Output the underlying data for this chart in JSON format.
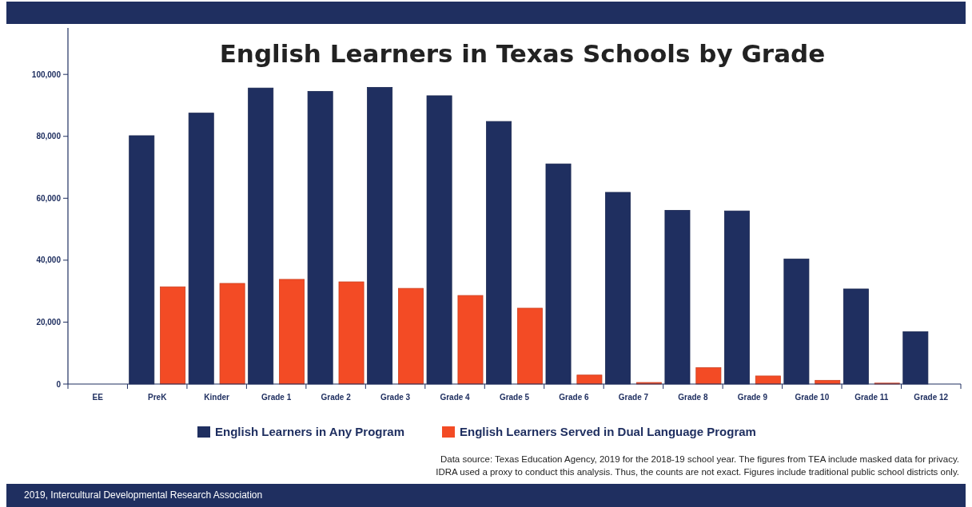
{
  "chart_data": {
    "type": "bar",
    "title": "English Learners in Texas Schools by Grade",
    "categories": [
      "EE",
      "PreK",
      "Kinder",
      "Grade 1",
      "Grade 2",
      "Grade 3",
      "Grade 4",
      "Grade 5",
      "Grade 6",
      "Grade 7",
      "Grade 8",
      "Grade 9",
      "Grade 10",
      "Grade 11",
      "Grade 12"
    ],
    "series": [
      {
        "name": "English Learners in Any Program",
        "color": "#1f2f60",
        "values": [
          null,
          80200,
          87500,
          95600,
          94500,
          95800,
          93100,
          84800,
          71100,
          61900,
          56100,
          55900,
          40400,
          30700,
          16900
        ]
      },
      {
        "name": "English Learners Served in Dual Language Program",
        "color": "#f34b25",
        "values": [
          null,
          31400,
          32500,
          33800,
          33000,
          30900,
          28600,
          24500,
          2900,
          500,
          5300,
          2600,
          1200,
          300,
          null
        ]
      }
    ],
    "ylim": [
      0,
      115000
    ],
    "yticks": [
      {
        "value": 0,
        "label": "0"
      },
      {
        "value": 20000,
        "label": "20,000"
      },
      {
        "value": 40000,
        "label": "40,000"
      },
      {
        "value": 60000,
        "label": "60,000"
      },
      {
        "value": 80000,
        "label": "80,000"
      },
      {
        "value": 100000,
        "label": "100,000"
      }
    ],
    "grid": false,
    "legend": "bottom",
    "annotations": [
      "Data source: Texas Education Agency, 2019 for the 2018-19 school year. The figures from TEA include masked data for privacy.",
      "IDRA used a proxy to conduct this analysis. Thus, the counts are not exact. Figures include traditional public school districts only.",
      "2019, Intercultural Developmental Research Association"
    ]
  }
}
